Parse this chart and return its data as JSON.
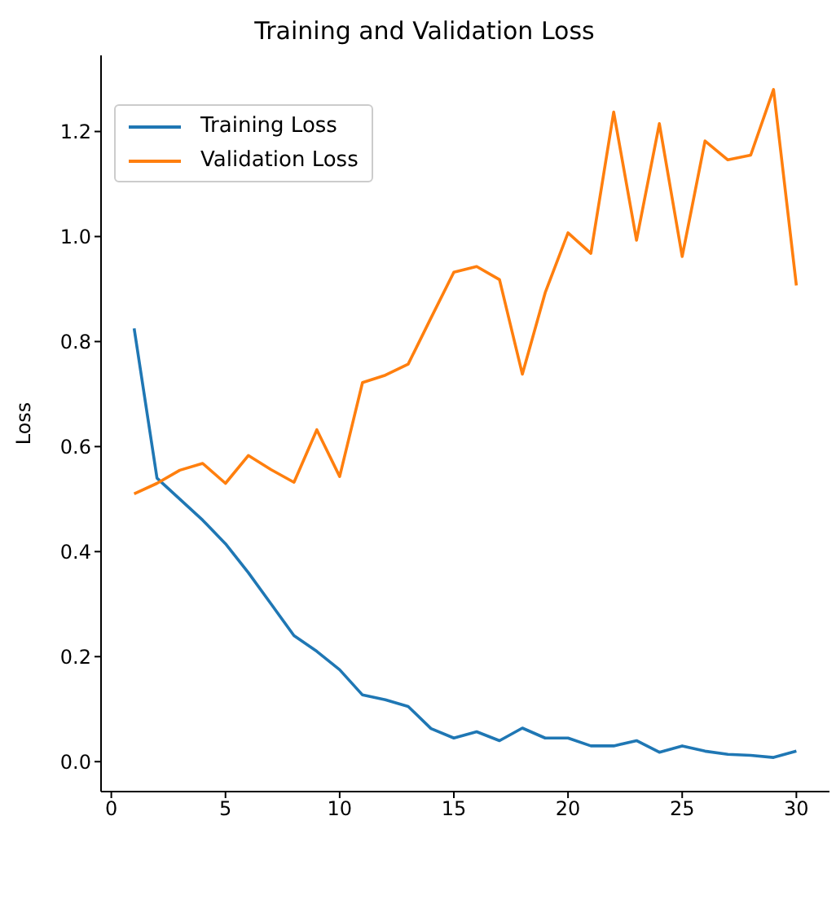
{
  "chart_data": {
    "type": "line",
    "title": "Training and Validation Loss",
    "ylabel": "Loss",
    "x": [
      1,
      2,
      3,
      4,
      5,
      6,
      7,
      8,
      9,
      10,
      11,
      12,
      13,
      14,
      15,
      16,
      17,
      18,
      19,
      20,
      21,
      22,
      23,
      24,
      25,
      26,
      27,
      28,
      29,
      30
    ],
    "series": [
      {
        "name": "Training Loss",
        "color": "#1f77b4",
        "values": [
          0.825,
          0.54,
          0.5,
          0.46,
          0.415,
          0.36,
          0.3,
          0.24,
          0.21,
          0.175,
          0.127,
          0.118,
          0.105,
          0.063,
          0.045,
          0.057,
          0.04,
          0.064,
          0.045,
          0.045,
          0.03,
          0.03,
          0.04,
          0.018,
          0.03,
          0.02,
          0.014,
          0.012,
          0.008,
          0.02
        ]
      },
      {
        "name": "Validation Loss",
        "color": "#ff7f0e",
        "values": [
          0.51,
          0.53,
          0.555,
          0.568,
          0.53,
          0.583,
          0.556,
          0.532,
          0.632,
          0.543,
          0.722,
          0.736,
          0.757,
          0.845,
          0.932,
          0.943,
          0.918,
          0.738,
          0.893,
          1.007,
          0.968,
          1.237,
          0.993,
          1.215,
          0.962,
          1.182,
          1.146,
          1.155,
          1.28,
          0.907
        ]
      }
    ],
    "xlim": [
      -0.45,
      31.45
    ],
    "xticks": [
      0,
      5,
      10,
      15,
      20,
      25,
      30
    ],
    "ylim": [
      -0.057,
      1.345
    ],
    "yticks": [
      {
        "value": 0,
        "label": "0.0"
      },
      {
        "value": 0.2,
        "label": "0.2"
      },
      {
        "value": 0.4,
        "label": "0.4"
      },
      {
        "value": 0.6,
        "label": "0.6"
      },
      {
        "value": 0.8,
        "label": "0.8"
      },
      {
        "value": 1,
        "label": "1.0"
      },
      {
        "value": 1.2,
        "label": "1.2"
      }
    ],
    "grid": false,
    "legend": "top left"
  }
}
